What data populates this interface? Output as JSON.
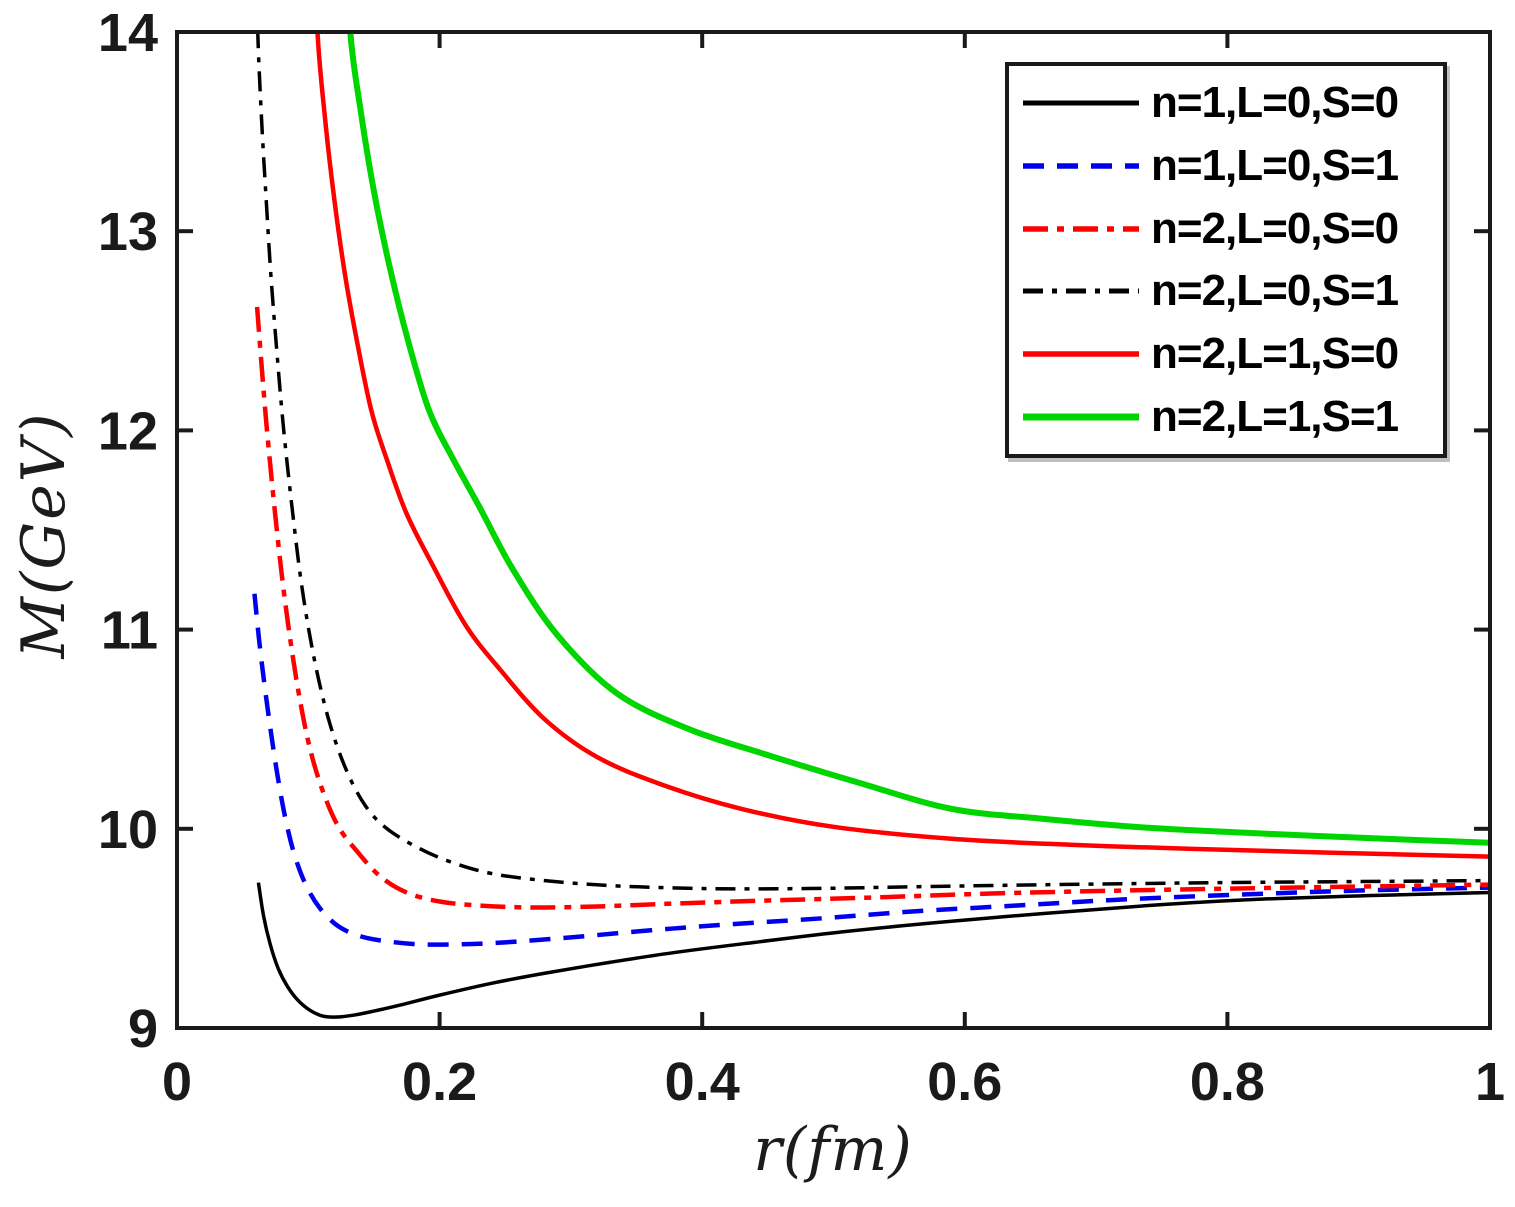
{
  "figure": {
    "xlabel": "r(fm)",
    "ylabel": "M(GeV)"
  },
  "chart_data": {
    "type": "line",
    "title": "",
    "xlabel": "r(fm)",
    "ylabel": "M(GeV)",
    "xlim": [
      0,
      1
    ],
    "ylim": [
      9,
      14
    ],
    "grid": false,
    "legend_position": "top-right",
    "x_ticks": [
      {
        "v": 0,
        "label": "0"
      },
      {
        "v": 0.2,
        "label": "0.2"
      },
      {
        "v": 0.4,
        "label": "0.4"
      },
      {
        "v": 0.6,
        "label": "0.6"
      },
      {
        "v": 0.8,
        "label": "0.8"
      },
      {
        "v": 1,
        "label": "1"
      }
    ],
    "y_ticks": [
      {
        "v": 9,
        "label": "9"
      },
      {
        "v": 10,
        "label": "10"
      },
      {
        "v": 11,
        "label": "11"
      },
      {
        "v": 12,
        "label": "12"
      },
      {
        "v": 13,
        "label": "13"
      },
      {
        "v": 14,
        "label": "14"
      }
    ],
    "series": [
      {
        "name": "n1-L0-S0",
        "label": "n=1,L=0,S=0",
        "color": "#000000",
        "style": "solid",
        "dash": "",
        "width": 3.5,
        "points": [
          [
            0.062,
            9.73
          ],
          [
            0.066,
            9.56
          ],
          [
            0.071,
            9.42
          ],
          [
            0.077,
            9.3
          ],
          [
            0.084,
            9.21
          ],
          [
            0.092,
            9.14
          ],
          [
            0.101,
            9.09
          ],
          [
            0.111,
            9.06
          ],
          [
            0.122,
            9.055
          ],
          [
            0.135,
            9.065
          ],
          [
            0.15,
            9.085
          ],
          [
            0.17,
            9.115
          ],
          [
            0.2,
            9.165
          ],
          [
            0.24,
            9.225
          ],
          [
            0.28,
            9.275
          ],
          [
            0.33,
            9.33
          ],
          [
            0.38,
            9.38
          ],
          [
            0.44,
            9.43
          ],
          [
            0.51,
            9.485
          ],
          [
            0.58,
            9.53
          ],
          [
            0.66,
            9.575
          ],
          [
            0.74,
            9.615
          ],
          [
            0.82,
            9.645
          ],
          [
            0.91,
            9.665
          ],
          [
            1.0,
            9.68
          ]
        ]
      },
      {
        "name": "n1-L0-S1",
        "label": "n=1,L=0,S=1",
        "color": "#0000ee",
        "style": "dashed",
        "dash": "21 13",
        "width": 4.5,
        "points": [
          [
            0.059,
            11.18
          ],
          [
            0.0625,
            10.95
          ],
          [
            0.0665,
            10.73
          ],
          [
            0.071,
            10.51
          ],
          [
            0.076,
            10.29
          ],
          [
            0.082,
            10.07
          ],
          [
            0.089,
            9.88
          ],
          [
            0.098,
            9.72
          ],
          [
            0.109,
            9.6
          ],
          [
            0.123,
            9.51
          ],
          [
            0.14,
            9.46
          ],
          [
            0.16,
            9.435
          ],
          [
            0.185,
            9.42
          ],
          [
            0.215,
            9.42
          ],
          [
            0.25,
            9.43
          ],
          [
            0.3,
            9.455
          ],
          [
            0.36,
            9.49
          ],
          [
            0.42,
            9.52
          ],
          [
            0.49,
            9.55
          ],
          [
            0.56,
            9.585
          ],
          [
            0.64,
            9.615
          ],
          [
            0.72,
            9.645
          ],
          [
            0.81,
            9.67
          ],
          [
            0.9,
            9.69
          ],
          [
            1.0,
            9.705
          ]
        ]
      },
      {
        "name": "n2-L0-S0",
        "label": "n=2,L=0,S=0",
        "color": "#ff0000",
        "style": "dash-dot",
        "dash": "25 9 7 9",
        "width": 4.5,
        "points": [
          [
            0.061,
            12.62
          ],
          [
            0.0645,
            12.32
          ],
          [
            0.068,
            12.04
          ],
          [
            0.072,
            11.76
          ],
          [
            0.0765,
            11.47
          ],
          [
            0.081,
            11.21
          ],
          [
            0.0865,
            10.94
          ],
          [
            0.093,
            10.67
          ],
          [
            0.101,
            10.41
          ],
          [
            0.111,
            10.19
          ],
          [
            0.123,
            10.01
          ],
          [
            0.138,
            9.88
          ],
          [
            0.155,
            9.76
          ],
          [
            0.175,
            9.68
          ],
          [
            0.2,
            9.635
          ],
          [
            0.23,
            9.615
          ],
          [
            0.27,
            9.605
          ],
          [
            0.32,
            9.61
          ],
          [
            0.38,
            9.625
          ],
          [
            0.45,
            9.64
          ],
          [
            0.53,
            9.655
          ],
          [
            0.62,
            9.675
          ],
          [
            0.72,
            9.69
          ],
          [
            0.85,
            9.705
          ],
          [
            1.0,
            9.72
          ]
        ]
      },
      {
        "name": "n2-L0-S1",
        "label": "n=2,L=0,S=1",
        "color": "#000000",
        "style": "dash-dot",
        "dash": "20 9 5 9",
        "width": 3.5,
        "points": [
          [
            0.0605,
            14.45
          ],
          [
            0.0615,
            14.0
          ],
          [
            0.0645,
            13.55
          ],
          [
            0.068,
            13.15
          ],
          [
            0.0715,
            12.78
          ],
          [
            0.076,
            12.4
          ],
          [
            0.081,
            12.02
          ],
          [
            0.0875,
            11.62
          ],
          [
            0.095,
            11.22
          ],
          [
            0.104,
            10.87
          ],
          [
            0.115,
            10.56
          ],
          [
            0.128,
            10.31
          ],
          [
            0.143,
            10.12
          ],
          [
            0.16,
            10.0
          ],
          [
            0.185,
            9.9
          ],
          [
            0.21,
            9.83
          ],
          [
            0.24,
            9.775
          ],
          [
            0.28,
            9.74
          ],
          [
            0.33,
            9.715
          ],
          [
            0.4,
            9.7
          ],
          [
            0.48,
            9.7
          ],
          [
            0.57,
            9.71
          ],
          [
            0.67,
            9.72
          ],
          [
            0.8,
            9.73
          ],
          [
            1.0,
            9.74
          ]
        ]
      },
      {
        "name": "n2-L1-S0",
        "label": "n=2,L=1,S=0",
        "color": "#ff0000",
        "style": "solid",
        "dash": "",
        "width": 4.5,
        "points": [
          [
            0.105,
            14.55
          ],
          [
            0.107,
            14.0
          ],
          [
            0.113,
            13.55
          ],
          [
            0.12,
            13.15
          ],
          [
            0.128,
            12.78
          ],
          [
            0.137,
            12.45
          ],
          [
            0.148,
            12.1
          ],
          [
            0.16,
            11.85
          ],
          [
            0.175,
            11.58
          ],
          [
            0.195,
            11.32
          ],
          [
            0.22,
            11.02
          ],
          [
            0.246,
            10.8
          ],
          [
            0.28,
            10.55
          ],
          [
            0.32,
            10.36
          ],
          [
            0.37,
            10.22
          ],
          [
            0.43,
            10.1
          ],
          [
            0.5,
            10.01
          ],
          [
            0.59,
            9.95
          ],
          [
            0.68,
            9.92
          ],
          [
            0.77,
            9.9
          ],
          [
            0.88,
            9.88
          ],
          [
            1.0,
            9.86
          ]
        ]
      },
      {
        "name": "n2-L1-S1",
        "label": "n=2,L=1,S=1",
        "color": "#00d500",
        "style": "solid",
        "dash": "",
        "width": 6,
        "points": [
          [
            0.129,
            14.55
          ],
          [
            0.132,
            14.0
          ],
          [
            0.14,
            13.6
          ],
          [
            0.15,
            13.2
          ],
          [
            0.162,
            12.82
          ],
          [
            0.176,
            12.45
          ],
          [
            0.192,
            12.1
          ],
          [
            0.21,
            11.86
          ],
          [
            0.23,
            11.62
          ],
          [
            0.256,
            11.3
          ],
          [
            0.29,
            10.97
          ],
          [
            0.335,
            10.68
          ],
          [
            0.39,
            10.5
          ],
          [
            0.45,
            10.37
          ],
          [
            0.52,
            10.23
          ],
          [
            0.59,
            10.1
          ],
          [
            0.66,
            10.05
          ],
          [
            0.74,
            10.005
          ],
          [
            0.83,
            9.975
          ],
          [
            0.92,
            9.95
          ],
          [
            1.0,
            9.93
          ]
        ]
      }
    ]
  }
}
